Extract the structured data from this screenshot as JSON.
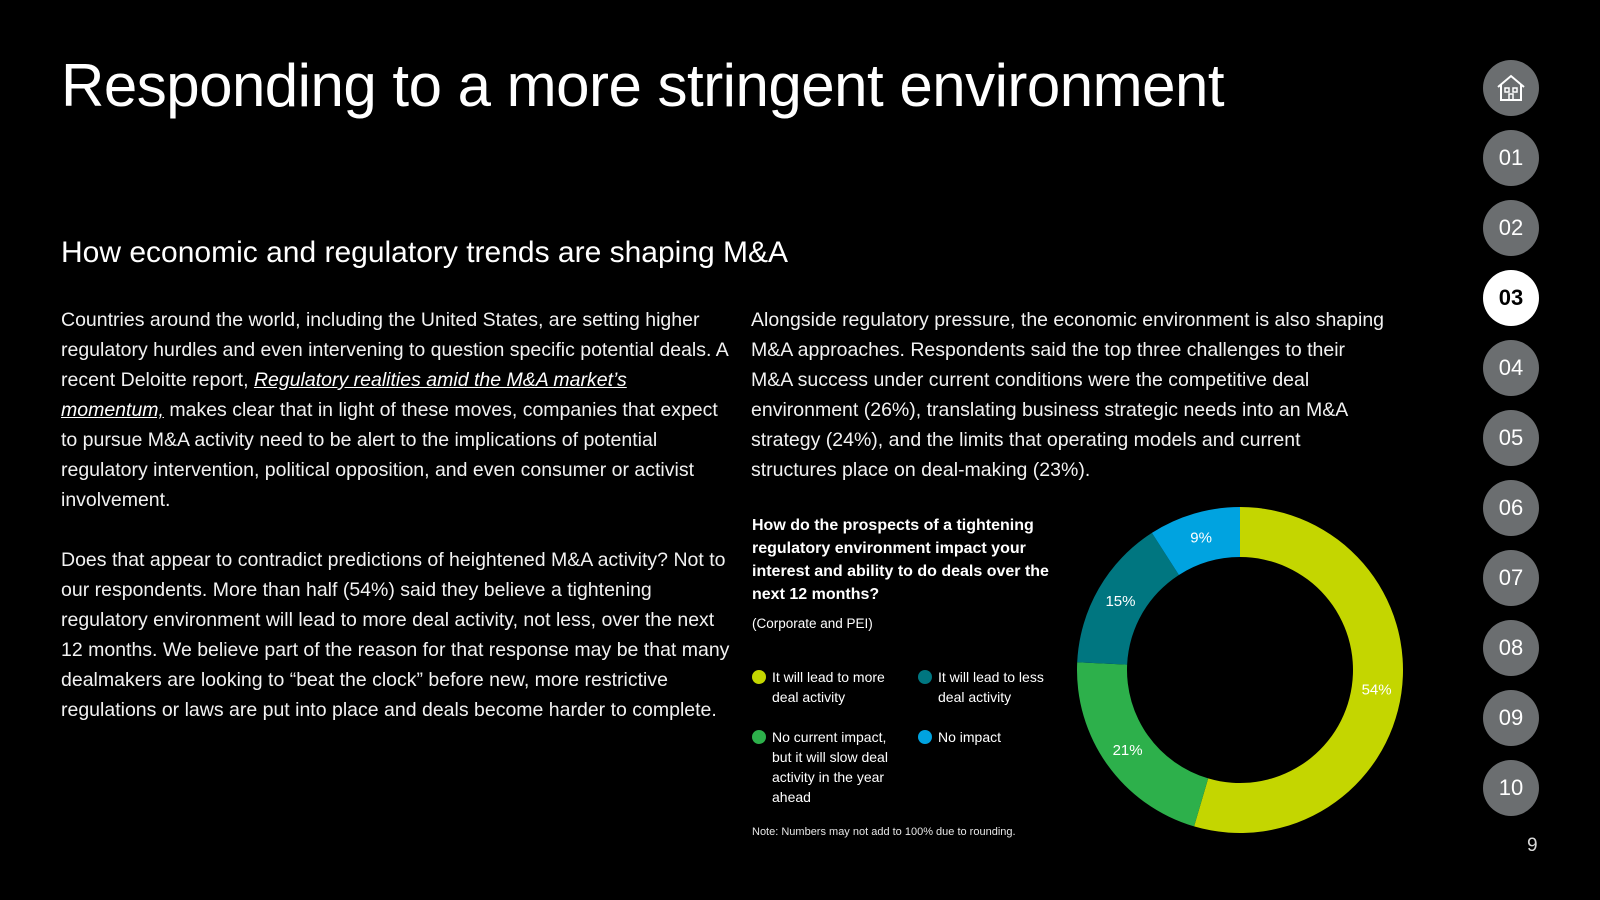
{
  "page": {
    "title": "Responding to a more stringent environment",
    "subtitle": "How economic and regulatory trends are shaping M&A",
    "page_number": "9"
  },
  "left_column": {
    "p1_before_link": "Countries around the world, including the United States, are setting higher regulatory hurdles and even intervening to question specific potential deals. A recent Deloitte report, ",
    "p1_link": "Regulatory realities amid the M&A market’s momentum,",
    "p1_after_link": " makes clear that in light of these moves, companies that expect to pursue M&A activity need to be alert to the implications of potential regulatory intervention, political opposition, and even consumer or activist involvement.",
    "p2": "Does that appear to contradict predictions of heightened M&A activity? Not to our respondents. More than half (54%) said they believe a tightening regulatory environment will lead to more deal activity, not less, over the next 12 months. We believe part of the reason for that response may be that many dealmakers are looking to “beat the clock” before new, more restrictive regulations or laws are put into place and deals become harder to complete."
  },
  "right_column": {
    "p1": "Alongside regulatory pressure, the economic environment is also shaping M&A approaches. Respondents said the top three challenges to their M&A success under current conditions were the competitive deal environment (26%), translating business strategic needs into an M&A strategy (24%), and the limits that operating models and current structures place on deal-making (23%)."
  },
  "chart_data": {
    "type": "pie",
    "variant": "donut",
    "title": "How do the prospects of a tightening regulatory environment impact your interest and ability to do deals over the next 12 months?",
    "subtitle": "(Corporate and PEI)",
    "note": "Note: Numbers may not add to 100% due to rounding.",
    "unit": "%",
    "slices": [
      {
        "label": "It will lead to more deal activity",
        "value": 54,
        "display": "54%",
        "color": "#c4d600"
      },
      {
        "label": "No current impact, but it will slow deal activity in the year ahead",
        "value": 21,
        "display": "21%",
        "color": "#2db04b"
      },
      {
        "label": "It will lead to less deal activity",
        "value": 15,
        "display": "15%",
        "color": "#007680"
      },
      {
        "label": "No impact",
        "value": 9,
        "display": "9%",
        "color": "#00a3e0"
      }
    ]
  },
  "nav": {
    "home_icon": "home-icon",
    "items": [
      "01",
      "02",
      "03",
      "04",
      "05",
      "06",
      "07",
      "08",
      "09",
      "10"
    ],
    "active": "03",
    "active_color": "#ffffff",
    "inactive_color": "#6b6e70"
  }
}
